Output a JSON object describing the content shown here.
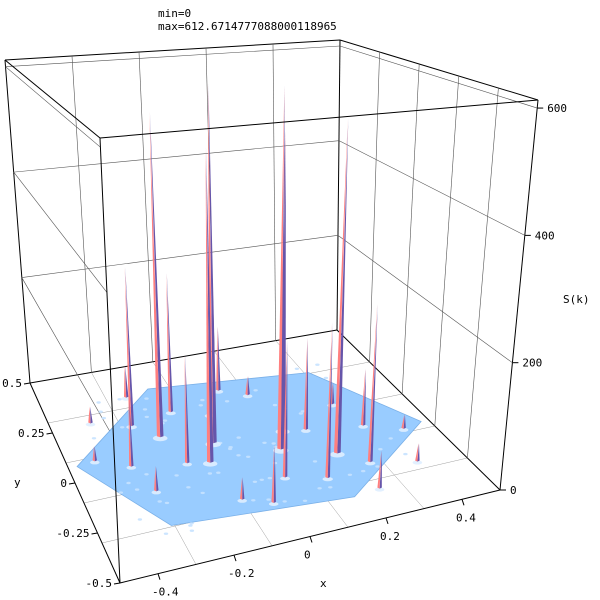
{
  "header": {
    "min_line": "min=0",
    "max_line": "max=612.6714777088000118965"
  },
  "chart_data": {
    "type": "surface3d",
    "title": "",
    "xlabel": "x",
    "ylabel": "y",
    "zlabel": "S(k)",
    "xlim": [
      -0.5,
      0.5
    ],
    "ylim": [
      -0.5,
      0.5
    ],
    "zlim": [
      0,
      612.67
    ],
    "x_ticks": [
      "-0.4",
      "-0.2",
      "0",
      "0.2",
      "0.4"
    ],
    "y_ticks": [
      "0.5",
      "0.25",
      "0",
      "-0.25",
      "-0.5"
    ],
    "z_ticks": [
      "0",
      "200",
      "400",
      "600"
    ],
    "z_tick_values": [
      0,
      200,
      400,
      600
    ],
    "grid": true,
    "base_color": "#99ccff",
    "peak_color": "#ff7f7f",
    "peak_shadow_color": "#6655aa",
    "peaks": [
      {
        "x": -0.08,
        "y": 0.05,
        "z": 612.67
      },
      {
        "x": 0.08,
        "y": -0.05,
        "z": 612.67
      },
      {
        "x": -0.21,
        "y": 0.13,
        "z": 560
      },
      {
        "x": 0.21,
        "y": -0.13,
        "z": 560
      },
      {
        "x": -0.14,
        "y": 0.24,
        "z": 250
      },
      {
        "x": 0.14,
        "y": -0.24,
        "z": 250
      },
      {
        "x": -0.12,
        "y": -0.04,
        "z": 520
      },
      {
        "x": 0.12,
        "y": 0.04,
        "z": 520
      },
      {
        "x": -0.27,
        "y": 0.21,
        "z": 280
      },
      {
        "x": 0.27,
        "y": -0.21,
        "z": 260
      },
      {
        "x": -0.04,
        "y": 0.19,
        "z": 220
      },
      {
        "x": 0.04,
        "y": -0.19,
        "z": 220
      },
      {
        "x": -0.18,
        "y": -0.02,
        "z": 180
      },
      {
        "x": 0.18,
        "y": 0.02,
        "z": 160
      },
      {
        "x": -0.33,
        "y": 0.02,
        "z": 110
      },
      {
        "x": 0.33,
        "y": -0.02,
        "z": 100
      },
      {
        "x": 0.03,
        "y": 0.3,
        "z": 120
      },
      {
        "x": -0.03,
        "y": -0.3,
        "z": 90
      },
      {
        "x": -0.24,
        "y": 0.35,
        "z": 60
      },
      {
        "x": 0.24,
        "y": -0.35,
        "z": 60
      },
      {
        "x": -0.38,
        "y": 0.26,
        "z": 30
      },
      {
        "x": 0.38,
        "y": -0.26,
        "z": 30
      },
      {
        "x": -0.3,
        "y": -0.12,
        "z": 40
      },
      {
        "x": 0.3,
        "y": 0.12,
        "z": 40
      },
      {
        "x": -0.1,
        "y": -0.25,
        "z": 35
      },
      {
        "x": 0.1,
        "y": 0.25,
        "z": 35
      },
      {
        "x": -0.42,
        "y": 0.08,
        "z": 25
      },
      {
        "x": 0.42,
        "y": -0.08,
        "z": 25
      }
    ]
  }
}
